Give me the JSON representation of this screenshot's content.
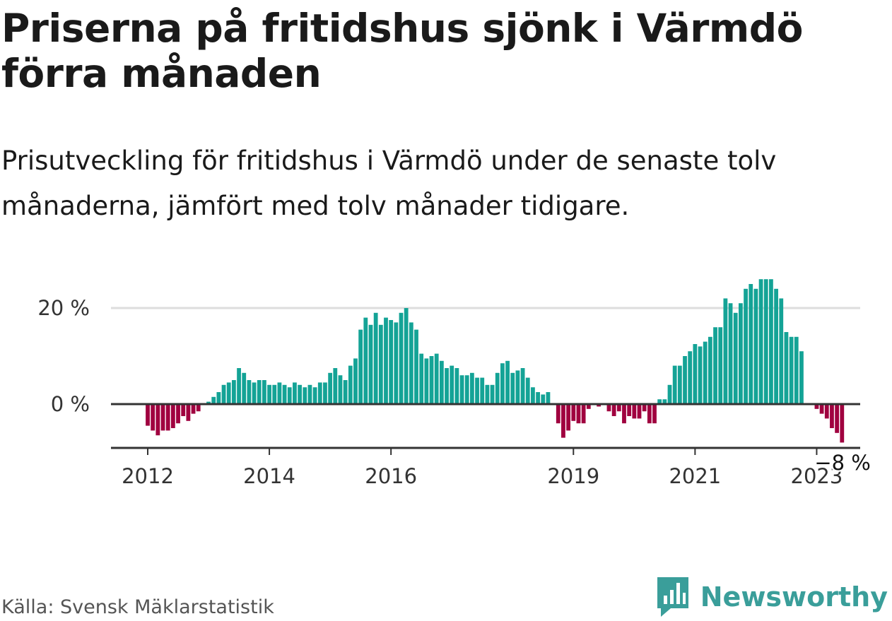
{
  "header": {
    "title": "Priserna på fritidshus sjönk i Värmdö förra månaden",
    "subtitle": "Prisutveckling för fritidshus i Värmdö under de senaste tolv månaderna, jämfört med tolv månader tidigare."
  },
  "footer": {
    "source": "Källa: Svensk Mäklarstatistik",
    "brand": "Newsworthy"
  },
  "colors": {
    "positive": "#14a396",
    "negative": "#a0003f",
    "grid": "#dddddd",
    "axis": "#333333",
    "brand": "#3a9e9a"
  },
  "chart_data": {
    "type": "bar",
    "xlabel": "",
    "ylabel": "",
    "ylim": [
      -9,
      27
    ],
    "y_ticks": [
      {
        "value": 0,
        "label": "0 %"
      },
      {
        "value": 20,
        "label": "20 %"
      }
    ],
    "x_ticks": [
      {
        "month": "2012-01",
        "label": "2012"
      },
      {
        "month": "2014-01",
        "label": "2014"
      },
      {
        "month": "2016-01",
        "label": "2016"
      },
      {
        "month": "2019-01",
        "label": "2019"
      },
      {
        "month": "2021-01",
        "label": "2021"
      },
      {
        "month": "2023-01",
        "label": "2023"
      }
    ],
    "annotation": {
      "text": "−8 %",
      "month": "2023-05"
    },
    "grid": true,
    "series": [
      {
        "values": [
          [
            "2012-01",
            -4.5
          ],
          [
            "2012-02",
            -5.5
          ],
          [
            "2012-03",
            -6.5
          ],
          [
            "2012-04",
            -5.5
          ],
          [
            "2012-05",
            -5.5
          ],
          [
            "2012-06",
            -5.0
          ],
          [
            "2012-07",
            -4.0
          ],
          [
            "2012-08",
            -2.5
          ],
          [
            "2012-09",
            -3.5
          ],
          [
            "2012-10",
            -2.0
          ],
          [
            "2012-11",
            -1.5
          ],
          [
            "2013-01",
            0.5
          ],
          [
            "2013-02",
            1.5
          ],
          [
            "2013-03",
            2.5
          ],
          [
            "2013-04",
            4.0
          ],
          [
            "2013-05",
            4.5
          ],
          [
            "2013-06",
            5.0
          ],
          [
            "2013-07",
            7.5
          ],
          [
            "2013-08",
            6.5
          ],
          [
            "2013-09",
            5.0
          ],
          [
            "2013-10",
            4.5
          ],
          [
            "2013-11",
            5.0
          ],
          [
            "2013-12",
            5.0
          ],
          [
            "2014-01",
            4.0
          ],
          [
            "2014-02",
            4.0
          ],
          [
            "2014-03",
            4.5
          ],
          [
            "2014-04",
            4.0
          ],
          [
            "2014-05",
            3.5
          ],
          [
            "2014-06",
            4.5
          ],
          [
            "2014-07",
            4.0
          ],
          [
            "2014-08",
            3.5
          ],
          [
            "2014-09",
            4.0
          ],
          [
            "2014-10",
            3.5
          ],
          [
            "2014-11",
            4.5
          ],
          [
            "2014-12",
            4.5
          ],
          [
            "2015-01",
            6.5
          ],
          [
            "2015-02",
            7.5
          ],
          [
            "2015-03",
            6.0
          ],
          [
            "2015-04",
            5.0
          ],
          [
            "2015-05",
            8.0
          ],
          [
            "2015-06",
            9.5
          ],
          [
            "2015-07",
            15.5
          ],
          [
            "2015-08",
            18.0
          ],
          [
            "2015-09",
            16.5
          ],
          [
            "2015-10",
            19.0
          ],
          [
            "2015-11",
            16.5
          ],
          [
            "2015-12",
            18.0
          ],
          [
            "2016-01",
            17.5
          ],
          [
            "2016-02",
            17.0
          ],
          [
            "2016-03",
            19.0
          ],
          [
            "2016-04",
            20.0
          ],
          [
            "2016-05",
            17.0
          ],
          [
            "2016-06",
            15.5
          ],
          [
            "2016-07",
            10.5
          ],
          [
            "2016-08",
            9.5
          ],
          [
            "2016-09",
            10.0
          ],
          [
            "2016-10",
            10.5
          ],
          [
            "2016-11",
            9.0
          ],
          [
            "2016-12",
            7.5
          ],
          [
            "2017-01",
            8.0
          ],
          [
            "2017-02",
            7.5
          ],
          [
            "2017-03",
            6.0
          ],
          [
            "2017-04",
            6.0
          ],
          [
            "2017-05",
            6.5
          ],
          [
            "2017-06",
            5.5
          ],
          [
            "2017-07",
            5.5
          ],
          [
            "2017-08",
            4.0
          ],
          [
            "2017-09",
            4.0
          ],
          [
            "2017-10",
            6.5
          ],
          [
            "2017-11",
            8.5
          ],
          [
            "2017-12",
            9.0
          ],
          [
            "2018-01",
            6.5
          ],
          [
            "2018-02",
            7.0
          ],
          [
            "2018-03",
            7.5
          ],
          [
            "2018-04",
            5.5
          ],
          [
            "2018-05",
            3.5
          ],
          [
            "2018-06",
            2.5
          ],
          [
            "2018-07",
            2.0
          ],
          [
            "2018-08",
            2.5
          ],
          [
            "2018-10",
            -4.0
          ],
          [
            "2018-11",
            -7.0
          ],
          [
            "2018-12",
            -5.5
          ],
          [
            "2019-01",
            -3.5
          ],
          [
            "2019-02",
            -4.0
          ],
          [
            "2019-03",
            -4.0
          ],
          [
            "2019-04",
            -1.0
          ],
          [
            "2019-06",
            -0.5
          ],
          [
            "2019-08",
            -1.5
          ],
          [
            "2019-09",
            -2.5
          ],
          [
            "2019-10",
            -1.5
          ],
          [
            "2019-11",
            -4.0
          ],
          [
            "2019-12",
            -2.5
          ],
          [
            "2020-01",
            -3.0
          ],
          [
            "2020-02",
            -3.0
          ],
          [
            "2020-03",
            -1.5
          ],
          [
            "2020-04",
            -4.0
          ],
          [
            "2020-05",
            -4.0
          ],
          [
            "2020-06",
            1.0
          ],
          [
            "2020-07",
            1.0
          ],
          [
            "2020-08",
            4.0
          ],
          [
            "2020-09",
            8.0
          ],
          [
            "2020-10",
            8.0
          ],
          [
            "2020-11",
            10.0
          ],
          [
            "2020-12",
            11.0
          ],
          [
            "2021-01",
            12.5
          ],
          [
            "2021-02",
            12.0
          ],
          [
            "2021-03",
            13.0
          ],
          [
            "2021-04",
            14.0
          ],
          [
            "2021-05",
            16.0
          ],
          [
            "2021-06",
            16.0
          ],
          [
            "2021-07",
            22.0
          ],
          [
            "2021-08",
            21.0
          ],
          [
            "2021-09",
            19.0
          ],
          [
            "2021-10",
            21.0
          ],
          [
            "2021-11",
            24.0
          ],
          [
            "2021-12",
            25.0
          ],
          [
            "2022-01",
            24.0
          ],
          [
            "2022-02",
            26.0
          ],
          [
            "2022-03",
            26.0
          ],
          [
            "2022-04",
            26.0
          ],
          [
            "2022-05",
            24.0
          ],
          [
            "2022-06",
            22.0
          ],
          [
            "2022-07",
            15.0
          ],
          [
            "2022-08",
            14.0
          ],
          [
            "2022-09",
            14.0
          ],
          [
            "2022-10",
            11.0
          ],
          [
            "2023-01",
            -1.0
          ],
          [
            "2023-02",
            -2.0
          ],
          [
            "2023-03",
            -3.0
          ],
          [
            "2023-04",
            -5.0
          ],
          [
            "2023-05",
            -6.0
          ],
          [
            "2023-06",
            -8.0
          ]
        ]
      }
    ]
  }
}
